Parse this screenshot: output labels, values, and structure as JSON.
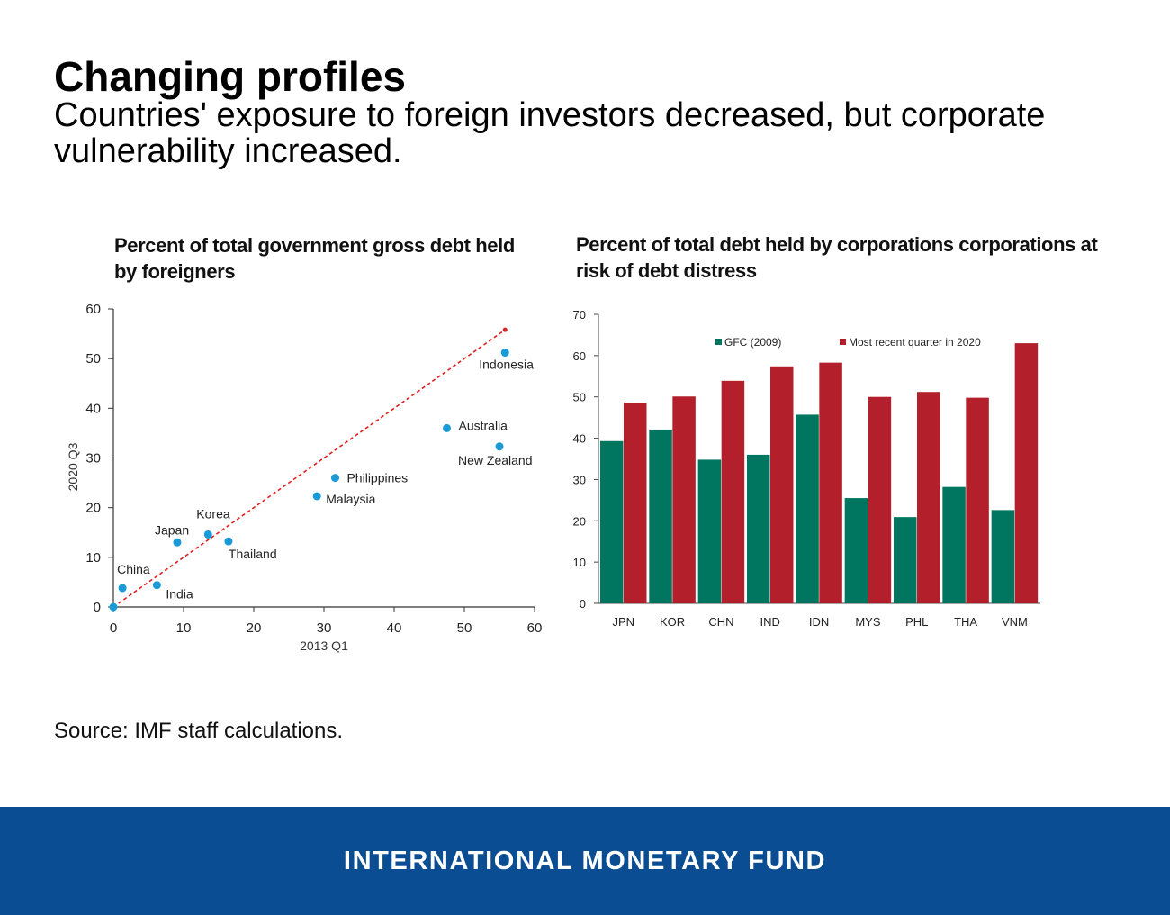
{
  "header": {
    "title": "Changing profiles",
    "subtitle": "Countries' exposure to foreign investors decreased, but corporate vulnerability increased."
  },
  "source": "Source: IMF staff calculations.",
  "footer": {
    "org": "INTERNATIONAL MONETARY FUND"
  },
  "colors": {
    "scatter_point": "#1a9ad6",
    "trend_line": "#e02020",
    "gfc_bar": "#00755f",
    "recent_bar": "#b3202b",
    "footer_bg": "#0b4d92"
  },
  "chart_data": [
    {
      "type": "scatter",
      "title": "Percent of total government gross debt held by foreigners",
      "xlabel": "2013 Q1",
      "ylabel": "2020 Q3",
      "xlim": [
        0,
        60
      ],
      "ylim": [
        0,
        60
      ],
      "xticks": [
        0,
        10,
        20,
        30,
        40,
        50,
        60
      ],
      "yticks": [
        0,
        10,
        20,
        30,
        40,
        50,
        60
      ],
      "points": [
        {
          "label": "China",
          "x": 1.3,
          "y": 3.8
        },
        {
          "label": "India",
          "x": 6.2,
          "y": 4.4
        },
        {
          "label": "Japan",
          "x": 9.1,
          "y": 13.0
        },
        {
          "label": "Korea",
          "x": 13.5,
          "y": 14.6
        },
        {
          "label": "Thailand",
          "x": 16.4,
          "y": 13.2
        },
        {
          "label": "Malaysia",
          "x": 29.0,
          "y": 22.3
        },
        {
          "label": "Philippines",
          "x": 31.6,
          "y": 26.0
        },
        {
          "label": "Australia",
          "x": 47.5,
          "y": 36.0
        },
        {
          "label": "New Zealand",
          "x": 55.0,
          "y": 32.3
        },
        {
          "label": "Indonesia",
          "x": 55.8,
          "y": 51.2
        }
      ],
      "origin_point": {
        "x": 0,
        "y": 0
      },
      "reference_line": {
        "type": "45-degree",
        "from": [
          0,
          0
        ],
        "to": [
          55.8,
          55.8
        ]
      }
    },
    {
      "type": "bar",
      "title": "Percent of total debt held by corporations corporations at risk of debt distress",
      "categories": [
        "JPN",
        "KOR",
        "CHN",
        "IND",
        "IDN",
        "MYS",
        "PHL",
        "THA",
        "VNM"
      ],
      "ylim": [
        0,
        70
      ],
      "yticks": [
        0,
        10,
        20,
        30,
        40,
        50,
        60,
        70
      ],
      "legend_position": "top",
      "series": [
        {
          "name": "GFC (2009)",
          "values": [
            39.3,
            42.1,
            34.8,
            36.0,
            45.7,
            25.5,
            20.9,
            28.2,
            22.6
          ]
        },
        {
          "name": "Most recent quarter in 2020",
          "values": [
            48.6,
            50.1,
            53.9,
            57.4,
            58.3,
            50.0,
            51.2,
            49.8,
            63.0
          ]
        }
      ]
    }
  ]
}
